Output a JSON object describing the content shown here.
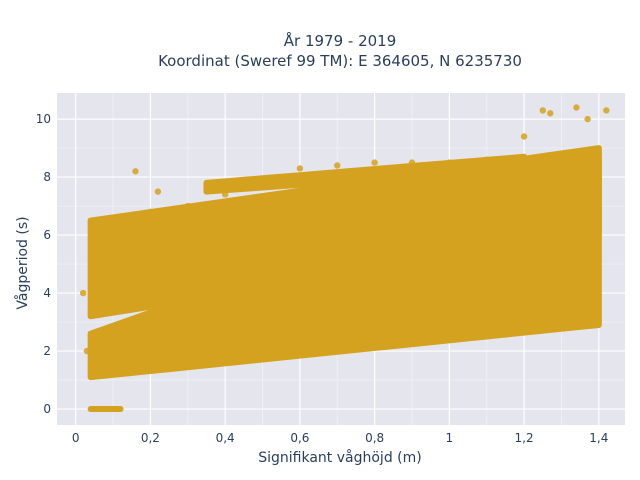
{
  "chart_data": {
    "type": "scatter",
    "title_lines": [
      "År 1979 - 2019",
      "Koordinat (Sweref 99 TM): E 364605, N 6235730"
    ],
    "xlabel": "Signifikant våghöjd (m)",
    "ylabel": "Vågperiod (s)",
    "xlim": [
      -0.05,
      1.47
    ],
    "ylim": [
      -0.55,
      10.9
    ],
    "x_ticks": [
      0,
      0.2,
      0.4,
      0.6,
      0.8,
      1,
      1.2,
      1.4
    ],
    "x_tick_labels": [
      "0",
      "0,2",
      "0,4",
      "0,6",
      "0,8",
      "1",
      "1,2",
      "1,4"
    ],
    "y_ticks": [
      0,
      2,
      4,
      6,
      8,
      10
    ],
    "y_tick_labels": [
      "0",
      "2",
      "4",
      "6",
      "8",
      "10"
    ],
    "grid": true,
    "legend": "none",
    "marker_color": "#d4a21f",
    "plot_bg": "#e5e5ee",
    "zero_period_segment": {
      "x": [
        0.04,
        0.12
      ],
      "y": 0
    },
    "density_bands": [
      {
        "x": [
          0.04,
          1.4
        ],
        "lower": [
          1.1,
          2.9
        ],
        "upper": [
          2.6,
          8.8
        ]
      },
      {
        "x": [
          0.04,
          1.4
        ],
        "lower": [
          3.2,
          6.0
        ],
        "upper": [
          6.5,
          9.0
        ]
      },
      {
        "x": [
          0.3,
          1.15
        ],
        "lower": [
          2.9,
          4.1
        ],
        "upper": [
          3.3,
          4.4
        ]
      },
      {
        "x": [
          0.35,
          1.2
        ],
        "lower": [
          7.5,
          8.3
        ],
        "upper": [
          7.8,
          8.7
        ]
      }
    ],
    "sample_points": [
      {
        "x": 0.05,
        "y": 1.2
      },
      {
        "x": 0.1,
        "y": 1.3
      },
      {
        "x": 0.15,
        "y": 1.5
      },
      {
        "x": 0.2,
        "y": 1.8
      },
      {
        "x": 0.25,
        "y": 2.0
      },
      {
        "x": 0.3,
        "y": 2.3
      },
      {
        "x": 0.35,
        "y": 2.6
      },
      {
        "x": 0.4,
        "y": 2.8
      },
      {
        "x": 0.45,
        "y": 3.0
      },
      {
        "x": 0.5,
        "y": 3.2
      },
      {
        "x": 0.55,
        "y": 3.4
      },
      {
        "x": 0.6,
        "y": 3.5
      },
      {
        "x": 0.65,
        "y": 3.6
      },
      {
        "x": 0.7,
        "y": 3.7
      },
      {
        "x": 0.75,
        "y": 3.9
      },
      {
        "x": 0.8,
        "y": 4.0
      },
      {
        "x": 0.85,
        "y": 4.1
      },
      {
        "x": 0.9,
        "y": 4.3
      },
      {
        "x": 1.0,
        "y": 4.7
      },
      {
        "x": 1.1,
        "y": 5.2
      },
      {
        "x": 1.2,
        "y": 6.0
      },
      {
        "x": 1.3,
        "y": 7.2
      },
      {
        "x": 1.38,
        "y": 8.4
      },
      {
        "x": 0.05,
        "y": 6.3
      },
      {
        "x": 0.1,
        "y": 6.6
      },
      {
        "x": 0.2,
        "y": 6.8
      },
      {
        "x": 0.3,
        "y": 7.0
      },
      {
        "x": 0.4,
        "y": 7.4
      },
      {
        "x": 0.5,
        "y": 7.8
      },
      {
        "x": 0.6,
        "y": 8.3
      },
      {
        "x": 0.7,
        "y": 8.4
      },
      {
        "x": 0.8,
        "y": 8.5
      },
      {
        "x": 0.9,
        "y": 8.5
      },
      {
        "x": 1.0,
        "y": 8.5
      },
      {
        "x": 1.1,
        "y": 8.6
      },
      {
        "x": 1.2,
        "y": 9.4
      },
      {
        "x": 1.25,
        "y": 10.3
      },
      {
        "x": 1.27,
        "y": 10.2
      },
      {
        "x": 1.34,
        "y": 10.4
      },
      {
        "x": 1.37,
        "y": 10.0
      },
      {
        "x": 1.42,
        "y": 10.3
      },
      {
        "x": 0.22,
        "y": 7.5
      },
      {
        "x": 0.16,
        "y": 8.2
      },
      {
        "x": 1.25,
        "y": 4.6
      },
      {
        "x": 1.26,
        "y": 5.3
      },
      {
        "x": 0.03,
        "y": 2.0
      },
      {
        "x": 0.02,
        "y": 4.0
      }
    ]
  }
}
